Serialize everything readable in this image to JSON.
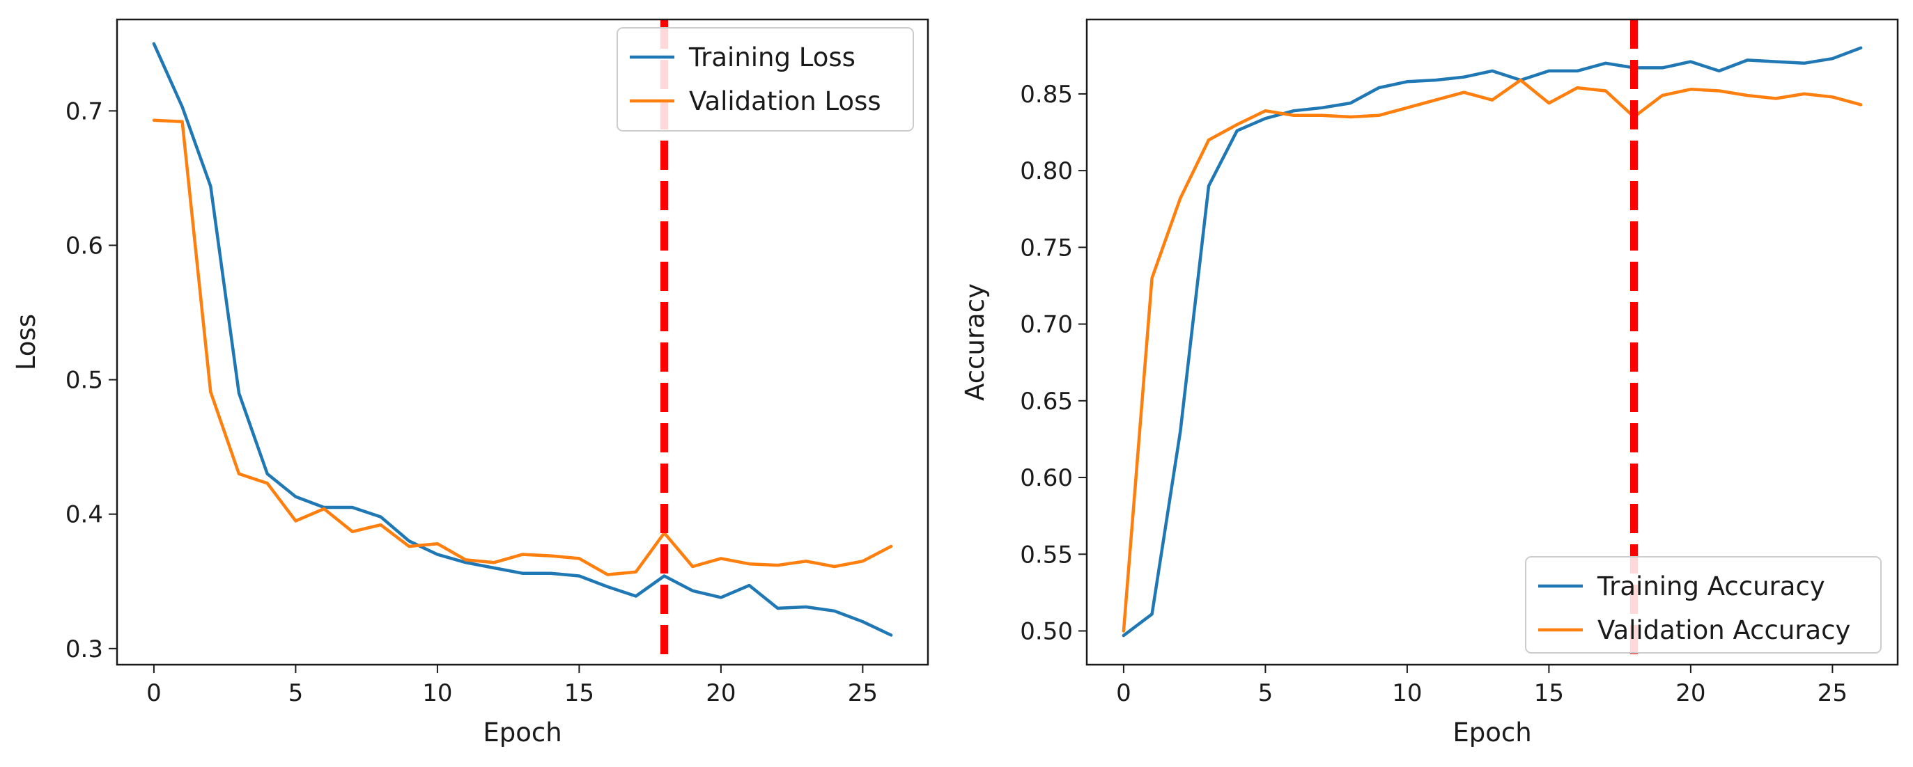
{
  "chart_data": [
    {
      "type": "line",
      "title": "",
      "xlabel": "Epoch",
      "ylabel": "Loss",
      "xlim": [
        -1.3,
        27.3
      ],
      "ylim": [
        0.288,
        0.768
      ],
      "xticks": [
        0,
        5,
        10,
        15,
        20,
        25
      ],
      "xtick_labels": [
        "0",
        "5",
        "10",
        "15",
        "20",
        "25"
      ],
      "yticks": [
        0.3,
        0.4,
        0.5,
        0.6,
        0.7
      ],
      "ytick_labels": [
        "0.3",
        "0.4",
        "0.5",
        "0.6",
        "0.7"
      ],
      "legend_position": "top-right",
      "x": [
        0,
        1,
        2,
        3,
        4,
        5,
        6,
        7,
        8,
        9,
        10,
        11,
        12,
        13,
        14,
        15,
        16,
        17,
        18,
        19,
        20,
        21,
        22,
        23,
        24,
        25,
        26
      ],
      "series": [
        {
          "name": "Training Loss",
          "color": "#1f77b4",
          "values": [
            0.75,
            0.703,
            0.644,
            0.49,
            0.43,
            0.413,
            0.405,
            0.405,
            0.398,
            0.38,
            0.37,
            0.364,
            0.36,
            0.356,
            0.356,
            0.354,
            0.346,
            0.339,
            0.354,
            0.343,
            0.338,
            0.347,
            0.33,
            0.331,
            0.328,
            0.32,
            0.31
          ]
        },
        {
          "name": "Validation Loss",
          "color": "#ff7f0e",
          "values": [
            0.693,
            0.692,
            0.491,
            0.43,
            0.423,
            0.395,
            0.404,
            0.387,
            0.392,
            0.376,
            0.378,
            0.366,
            0.364,
            0.37,
            0.369,
            0.367,
            0.355,
            0.357,
            0.386,
            0.361,
            0.367,
            0.363,
            0.362,
            0.365,
            0.361,
            0.365,
            0.376
          ]
        }
      ],
      "marker_line": {
        "x": 18,
        "color": "#ff0000",
        "style": "dashed"
      }
    },
    {
      "type": "line",
      "title": "",
      "xlabel": "Epoch",
      "ylabel": "Accuracy",
      "xlim": [
        -1.3,
        27.3
      ],
      "ylim": [
        0.478,
        0.8985
      ],
      "xticks": [
        0,
        5,
        10,
        15,
        20,
        25
      ],
      "xtick_labels": [
        "0",
        "5",
        "10",
        "15",
        "20",
        "25"
      ],
      "yticks": [
        0.5,
        0.55,
        0.6,
        0.65,
        0.7,
        0.75,
        0.8,
        0.85
      ],
      "ytick_labels": [
        "0.50",
        "0.55",
        "0.60",
        "0.65",
        "0.70",
        "0.75",
        "0.80",
        "0.85"
      ],
      "legend_position": "bottom-right",
      "x": [
        0,
        1,
        2,
        3,
        4,
        5,
        6,
        7,
        8,
        9,
        10,
        11,
        12,
        13,
        14,
        15,
        16,
        17,
        18,
        19,
        20,
        21,
        22,
        23,
        24,
        25,
        26
      ],
      "series": [
        {
          "name": "Training Accuracy",
          "color": "#1f77b4",
          "values": [
            0.497,
            0.511,
            0.63,
            0.79,
            0.826,
            0.834,
            0.839,
            0.841,
            0.844,
            0.854,
            0.858,
            0.859,
            0.861,
            0.865,
            0.859,
            0.865,
            0.865,
            0.87,
            0.867,
            0.867,
            0.871,
            0.865,
            0.872,
            0.871,
            0.87,
            0.873,
            0.88
          ]
        },
        {
          "name": "Validation Accuracy",
          "color": "#ff7f0e",
          "values": [
            0.5,
            0.73,
            0.782,
            0.82,
            0.83,
            0.839,
            0.836,
            0.836,
            0.835,
            0.836,
            0.841,
            0.846,
            0.851,
            0.846,
            0.859,
            0.844,
            0.854,
            0.852,
            0.835,
            0.849,
            0.853,
            0.852,
            0.849,
            0.847,
            0.85,
            0.848,
            0.843
          ]
        }
      ],
      "marker_line": {
        "x": 18,
        "color": "#ff0000",
        "style": "dashed"
      }
    }
  ]
}
